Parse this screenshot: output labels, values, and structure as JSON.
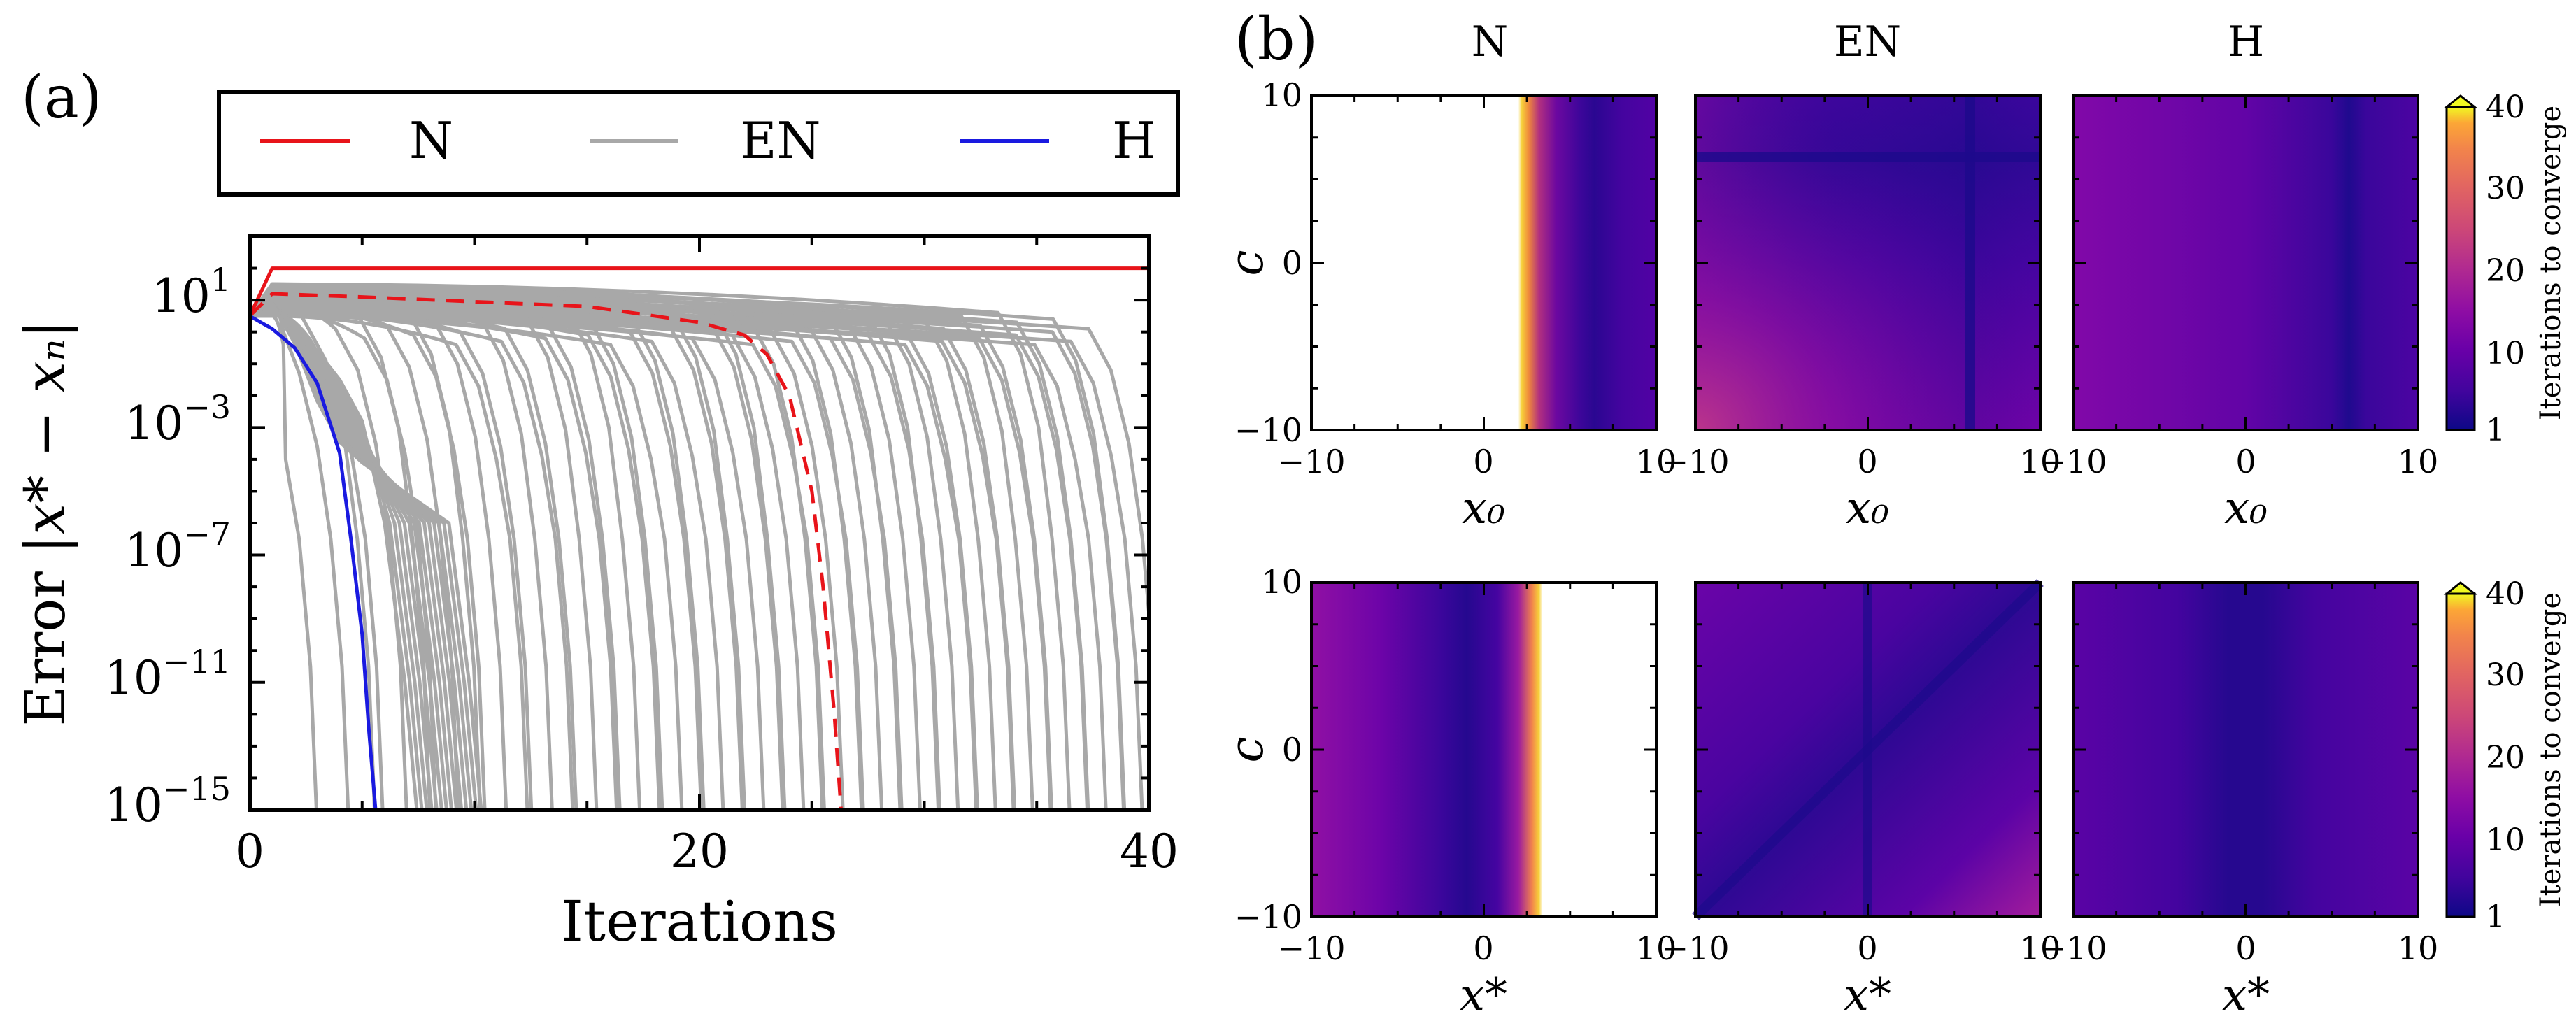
{
  "panel_a": {
    "label": "(a)",
    "legend": [
      {
        "name": "N",
        "color": "#e8141a"
      },
      {
        "name": "EN",
        "color": "#a8a8a8"
      },
      {
        "name": "H",
        "color": "#1a1ae0"
      }
    ],
    "xlabel": "Iterations",
    "ylabel_prefix": "Error ",
    "ylabel_math": "|x* − xₙ|",
    "xticks": [
      "0",
      "20",
      "40"
    ],
    "yticks": [
      {
        "base": "10",
        "exp": "1"
      },
      {
        "base": "10",
        "exp": "−3"
      },
      {
        "base": "10",
        "exp": "−7"
      },
      {
        "base": "10",
        "exp": "−11"
      },
      {
        "base": "10",
        "exp": "−15"
      }
    ]
  },
  "panel_b": {
    "label": "(b)",
    "column_titles": [
      "N",
      "EN",
      "H"
    ],
    "ylabel": "c",
    "row1_xlabel": "x₀",
    "row2_xlabel": "x*",
    "tick_labels": [
      "−10",
      "0",
      "10"
    ],
    "colorbar_label": "Iterations to converge",
    "colorbar_ticks": [
      "1",
      "10",
      "20",
      "30",
      "40"
    ]
  },
  "chart_data": [
    {
      "type": "line",
      "title": "",
      "xlabel": "Iterations",
      "ylabel": "Error |x* − x_n|",
      "xlim": [
        0,
        40
      ],
      "ylim_log10": [
        -15,
        3
      ],
      "yscale": "log",
      "series": [
        {
          "name": "N",
          "style": "solid",
          "x": [
            0,
            1,
            40
          ],
          "log10_y": [
            0.5,
            2.0,
            2.0
          ]
        },
        {
          "name": "N (dashed)",
          "style": "dashed",
          "x": [
            0,
            1,
            5,
            10,
            15,
            20,
            22,
            23,
            24,
            25,
            25.5,
            26,
            26.3
          ],
          "log10_y": [
            0.5,
            1.2,
            1.1,
            0.95,
            0.8,
            0.3,
            -0.1,
            -0.7,
            -2.0,
            -5.0,
            -8.0,
            -12.0,
            -15.0
          ]
        },
        {
          "name": "H",
          "style": "solid",
          "x": [
            0,
            1,
            2,
            3,
            4,
            4.5,
            5,
            5.3,
            5.6
          ],
          "log10_y": [
            0.5,
            0.1,
            -0.5,
            -1.6,
            -3.8,
            -6.5,
            -9.5,
            -12.5,
            -15.0
          ]
        },
        {
          "name": "EN",
          "style": "family",
          "description_count": 60,
          "x_end_range": [
            3,
            40
          ],
          "log10_y_start": [
            0.5,
            1.5
          ]
        }
      ],
      "legend": [
        "N",
        "EN",
        "H"
      ]
    },
    {
      "type": "heatmap",
      "title": "N / EN / H",
      "rows": [
        "x₀",
        "x*"
      ],
      "columns": [
        "N",
        "EN",
        "H"
      ],
      "xlim": [
        -10,
        10
      ],
      "ylim": [
        -10,
        10
      ],
      "colorbar": {
        "label": "Iterations to converge",
        "min": 1,
        "max": 40,
        "ticks": [
          1,
          10,
          20,
          30,
          40
        ],
        "extend": "max",
        "colormap": "plasma"
      },
      "cells": {
        "N_x0": {
          "not_converged_x_range": [
            -10,
            2.6
          ],
          "approx_iterations_near_edge": 40,
          "approx_iterations_far": 5
        },
        "EN_x0": {
          "approx_iterations_range": [
            3,
            18
          ],
          "min_line_x": 6,
          "min_line_c": 6
        },
        "H_x0": {
          "approx_iterations_range": [
            4,
            13
          ],
          "min_line_x": 6
        },
        "N_xstar": {
          "not_converged_x_range": [
            3.3,
            10
          ],
          "approx_iterations_near_edge": 40,
          "approx_iterations_far": 13
        },
        "EN_xstar": {
          "approx_iterations_range": [
            3,
            16
          ],
          "min_line": "x* = 0 and c = x*"
        },
        "H_xstar": {
          "approx_iterations_range": [
            3,
            9
          ],
          "min_line_x": 0
        }
      }
    }
  ]
}
